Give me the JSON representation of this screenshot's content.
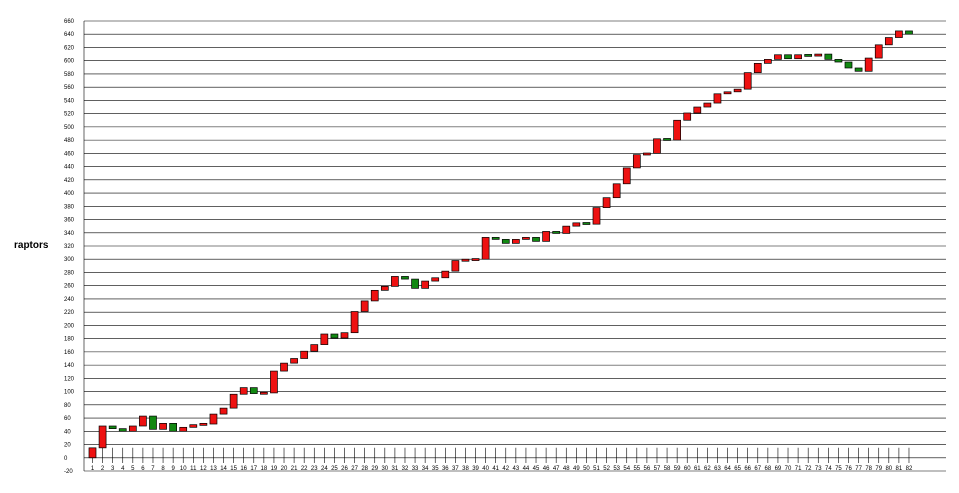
{
  "chart_data": {
    "type": "candlestick",
    "ylabel": "raptors",
    "ylim": [
      -20,
      660
    ],
    "ytick_step": 20,
    "grid": true,
    "up_color": "#ee1111",
    "down_color": "#118811",
    "categories": [
      "1",
      "2",
      "3",
      "4",
      "5",
      "6",
      "7",
      "8",
      "9",
      "10",
      "11",
      "12",
      "13",
      "14",
      "15",
      "16",
      "17",
      "18",
      "19",
      "20",
      "21",
      "22",
      "23",
      "24",
      "25",
      "26",
      "27",
      "28",
      "29",
      "30",
      "31",
      "32",
      "33",
      "34",
      "35",
      "36",
      "37",
      "38",
      "39",
      "40",
      "41",
      "42",
      "43",
      "44",
      "45",
      "46",
      "47",
      "48",
      "49",
      "50",
      "51",
      "52",
      "53",
      "54",
      "55",
      "56",
      "57",
      "58",
      "59",
      "60",
      "61",
      "62",
      "63",
      "64",
      "65",
      "66",
      "67",
      "68",
      "69",
      "70",
      "71",
      "72",
      "73",
      "74",
      "75",
      "76",
      "77",
      "78",
      "79",
      "80",
      "81",
      "82"
    ],
    "series": [
      {
        "open": 0,
        "close": 15
      },
      {
        "open": 15,
        "close": 48
      },
      {
        "open": 48,
        "close": 44
      },
      {
        "open": 44,
        "close": 40
      },
      {
        "open": 40,
        "close": 48
      },
      {
        "open": 48,
        "close": 63
      },
      {
        "open": 63,
        "close": 43
      },
      {
        "open": 43,
        "close": 52
      },
      {
        "open": 52,
        "close": 40
      },
      {
        "open": 40,
        "close": 46
      },
      {
        "open": 46,
        "close": 50
      },
      {
        "open": 50,
        "close": 51
      },
      {
        "open": 51,
        "close": 66
      },
      {
        "open": 66,
        "close": 75
      },
      {
        "open": 75,
        "close": 96
      },
      {
        "open": 96,
        "close": 106
      },
      {
        "open": 106,
        "close": 97
      },
      {
        "open": 97,
        "close": 98
      },
      {
        "open": 98,
        "close": 131
      },
      {
        "open": 131,
        "close": 143
      },
      {
        "open": 143,
        "close": 150
      },
      {
        "open": 150,
        "close": 161
      },
      {
        "open": 161,
        "close": 171
      },
      {
        "open": 171,
        "close": 187
      },
      {
        "open": 187,
        "close": 181
      },
      {
        "open": 181,
        "close": 189
      },
      {
        "open": 189,
        "close": 221
      },
      {
        "open": 221,
        "close": 237
      },
      {
        "open": 237,
        "close": 253
      },
      {
        "open": 253,
        "close": 259
      },
      {
        "open": 259,
        "close": 274
      },
      {
        "open": 274,
        "close": 270
      },
      {
        "open": 270,
        "close": 256
      },
      {
        "open": 256,
        "close": 267
      },
      {
        "open": 267,
        "close": 272
      },
      {
        "open": 272,
        "close": 282
      },
      {
        "open": 282,
        "close": 298
      },
      {
        "open": 298,
        "close": 299
      },
      {
        "open": 299,
        "close": 300
      },
      {
        "open": 300,
        "close": 333
      },
      {
        "open": 333,
        "close": 330
      },
      {
        "open": 330,
        "close": 324
      },
      {
        "open": 324,
        "close": 330
      },
      {
        "open": 330,
        "close": 333
      },
      {
        "open": 333,
        "close": 327
      },
      {
        "open": 327,
        "close": 342
      },
      {
        "open": 342,
        "close": 339
      },
      {
        "open": 339,
        "close": 350
      },
      {
        "open": 350,
        "close": 355
      },
      {
        "open": 355,
        "close": 353
      },
      {
        "open": 353,
        "close": 378
      },
      {
        "open": 378,
        "close": 393
      },
      {
        "open": 393,
        "close": 414
      },
      {
        "open": 414,
        "close": 438
      },
      {
        "open": 438,
        "close": 458
      },
      {
        "open": 458,
        "close": 460
      },
      {
        "open": 460,
        "close": 482
      },
      {
        "open": 482,
        "close": 480
      },
      {
        "open": 480,
        "close": 510
      },
      {
        "open": 510,
        "close": 521
      },
      {
        "open": 521,
        "close": 530
      },
      {
        "open": 530,
        "close": 536
      },
      {
        "open": 536,
        "close": 550
      },
      {
        "open": 550,
        "close": 553
      },
      {
        "open": 553,
        "close": 557
      },
      {
        "open": 557,
        "close": 582
      },
      {
        "open": 582,
        "close": 596
      },
      {
        "open": 596,
        "close": 602
      },
      {
        "open": 602,
        "close": 609
      },
      {
        "open": 609,
        "close": 603
      },
      {
        "open": 603,
        "close": 609
      },
      {
        "open": 609,
        "close": 607
      },
      {
        "open": 607,
        "close": 610
      },
      {
        "open": 610,
        "close": 602
      },
      {
        "open": 602,
        "close": 598
      },
      {
        "open": 598,
        "close": 589
      },
      {
        "open": 589,
        "close": 584
      },
      {
        "open": 584,
        "close": 604
      },
      {
        "open": 604,
        "close": 624
      },
      {
        "open": 624,
        "close": 635
      },
      {
        "open": 635,
        "close": 645
      },
      {
        "open": 645,
        "close": 640
      }
    ]
  }
}
